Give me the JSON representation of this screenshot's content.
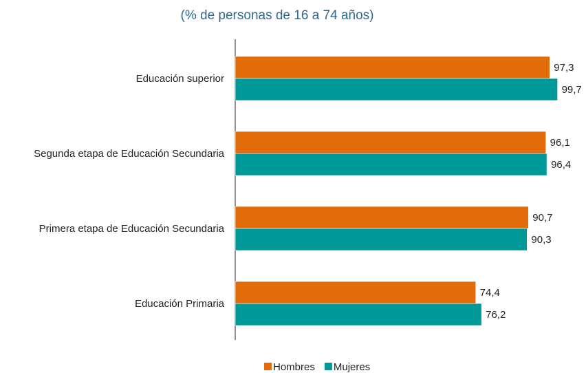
{
  "chart_data": {
    "type": "bar",
    "orientation": "horizontal",
    "title": "",
    "subtitle": "(% de personas de 16 a 74 años)",
    "categories": [
      "Educación superior",
      "Segunda etapa de Educación Secundaria",
      "Primera etapa de Educación Secundaria",
      "Educación Primaria"
    ],
    "series": [
      {
        "name": "Hombres",
        "color": "#E36C0A",
        "values": [
          97.3,
          96.1,
          90.7,
          74.4
        ],
        "labels": [
          "97,3",
          "96,1",
          "90,7",
          "74,4"
        ]
      },
      {
        "name": "Mujeres",
        "color": "#009999",
        "values": [
          99.7,
          96.4,
          90.3,
          76.2
        ],
        "labels": [
          "99,7",
          "96,4",
          "90,3",
          "76,2"
        ]
      }
    ],
    "xlim": [
      0,
      100
    ],
    "xlabel": "",
    "ylabel": "",
    "grid": false,
    "legend_position": "bottom-center",
    "subtitle_color": "#31688E"
  }
}
